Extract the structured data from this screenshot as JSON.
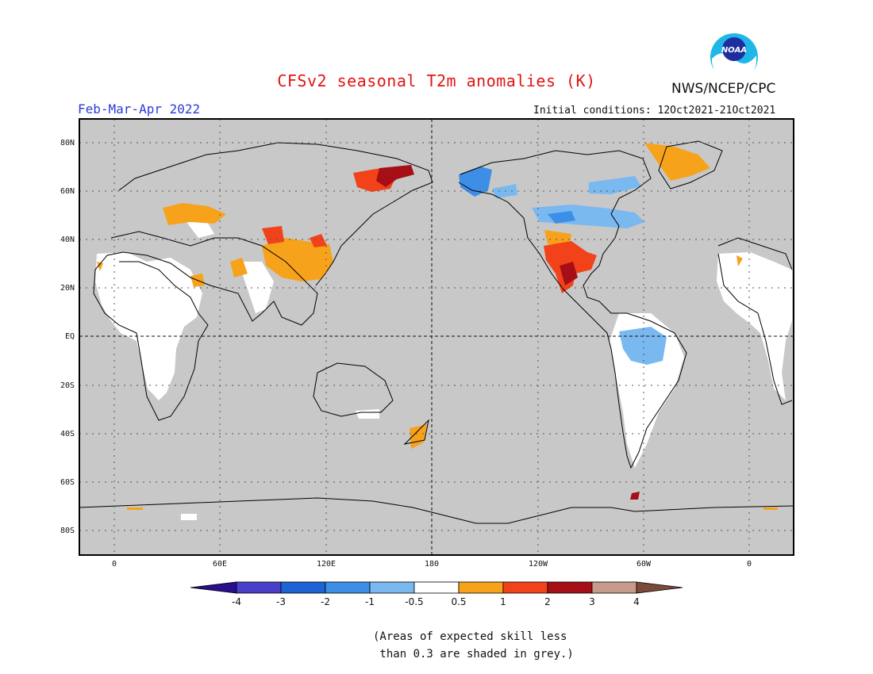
{
  "header": {
    "title": "CFSv2 seasonal T2m anomalies (K)",
    "period": "Feb-Mar-Apr 2022",
    "initial_conditions": "Initial conditions: 12Oct2021-21Oct2021",
    "agency": "NWS/NCEP/CPC",
    "logo_text": "NOAA"
  },
  "map": {
    "lat_labels": [
      "80N",
      "60N",
      "40N",
      "20N",
      "EQ",
      "20S",
      "40S",
      "60S",
      "80S"
    ],
    "lon_labels": [
      "0",
      "60E",
      "120E",
      "180",
      "120W",
      "60W",
      "0"
    ],
    "background_color": "#c8c8c8",
    "land_outline_color": "#000000"
  },
  "colorbar": {
    "labels": [
      "-4",
      "-3",
      "-2",
      "-1",
      "-0.5",
      "0.5",
      "1",
      "2",
      "3",
      "4"
    ],
    "colors": [
      "#2a0f8c",
      "#4a3fc8",
      "#1e63d6",
      "#3d8ee6",
      "#7ab8f0",
      "#ffffff",
      "#f7a21b",
      "#f2421a",
      "#a50f15",
      "#c79b8c",
      "#7a4a3a"
    ]
  },
  "footnote": "(Areas of expected skill less\n than 0.3 are shaded in grey.)"
}
